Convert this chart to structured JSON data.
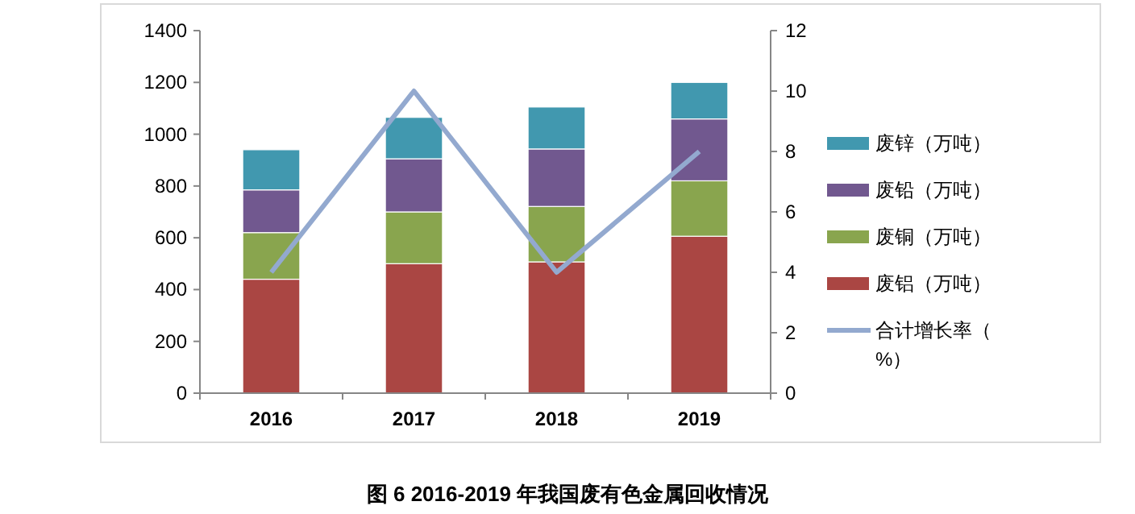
{
  "chart_data": {
    "type": "bar",
    "title": "图 6   2016-2019 年我国废有色金属回收情况",
    "categories": [
      "2016",
      "2017",
      "2018",
      "2019"
    ],
    "stacked": true,
    "series": [
      {
        "name": "废铝（万吨）",
        "color": "#aa4643",
        "values": [
          440,
          500,
          507,
          606
        ]
      },
      {
        "name": "废铜（万吨）",
        "color": "#89a54e",
        "values": [
          180,
          200,
          214,
          214
        ]
      },
      {
        "name": "废铅（万吨）",
        "color": "#71588f",
        "values": [
          165,
          205,
          222,
          239
        ]
      },
      {
        "name": "废锌（万吨）",
        "color": "#4198af",
        "values": [
          155,
          160,
          162,
          141
        ]
      },
      {
        "name": "合计增长率（%）",
        "type": "line",
        "axis": "y2",
        "color": "#93a9cf",
        "values": [
          4,
          10,
          4,
          8
        ]
      }
    ],
    "ylim": [
      0,
      1400
    ],
    "yticks": [
      0,
      200,
      400,
      600,
      800,
      1000,
      1200,
      1400
    ],
    "y2lim": [
      0,
      12
    ],
    "y2ticks": [
      0,
      2,
      4,
      6,
      8,
      10,
      12
    ],
    "grid": false,
    "legend": "right",
    "marker": "none"
  }
}
